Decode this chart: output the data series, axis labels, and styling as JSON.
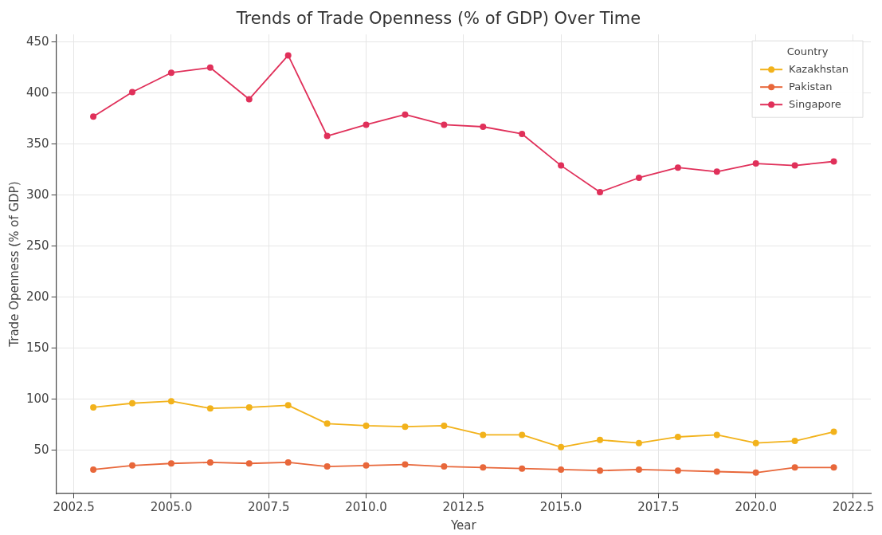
{
  "chart_data": {
    "type": "line",
    "title": "Trends of Trade Openness (% of GDP) Over Time",
    "xlabel": "Year",
    "ylabel": "Trade Openness (% of GDP)",
    "legend_title": "Country",
    "x": [
      2003,
      2004,
      2005,
      2006,
      2007,
      2008,
      2009,
      2010,
      2011,
      2012,
      2013,
      2014,
      2015,
      2016,
      2017,
      2018,
      2019,
      2020,
      2021,
      2022
    ],
    "series": [
      {
        "name": "Kazakhstan",
        "color": "#f2b21b",
        "values": [
          92,
          96,
          98,
          91,
          92,
          94,
          76,
          74,
          73,
          74,
          65,
          65,
          53,
          60,
          57,
          63,
          65,
          57,
          59,
          68
        ]
      },
      {
        "name": "Pakistan",
        "color": "#e8673a",
        "values": [
          31,
          35,
          37,
          38,
          37,
          38,
          34,
          35,
          36,
          34,
          33,
          32,
          31,
          30,
          31,
          30,
          29,
          28,
          33,
          33
        ]
      },
      {
        "name": "Singapore",
        "color": "#e0305a",
        "values": [
          377,
          401,
          420,
          425,
          394,
          437,
          358,
          369,
          379,
          369,
          367,
          360,
          329,
          303,
          317,
          327,
          323,
          331,
          329,
          333
        ]
      }
    ],
    "xlim": [
      2002.05,
      2022.95
    ],
    "ylim": [
      7.5,
      457.5
    ],
    "xticks": [
      {
        "value": 2002.5,
        "label": "2002.5"
      },
      {
        "value": 2005,
        "label": "2005.0"
      },
      {
        "value": 2007.5,
        "label": "2007.5"
      },
      {
        "value": 2010,
        "label": "2010.0"
      },
      {
        "value": 2012.5,
        "label": "2012.5"
      },
      {
        "value": 2015,
        "label": "2015.0"
      },
      {
        "value": 2017.5,
        "label": "2017.5"
      },
      {
        "value": 2020,
        "label": "2020.0"
      },
      {
        "value": 2022.5,
        "label": "2022.5"
      }
    ],
    "yticks": [
      50,
      100,
      150,
      200,
      250,
      300,
      350,
      400,
      450
    ],
    "grid": true,
    "legend": "top right",
    "marker": "circle",
    "line_style": "solid"
  }
}
